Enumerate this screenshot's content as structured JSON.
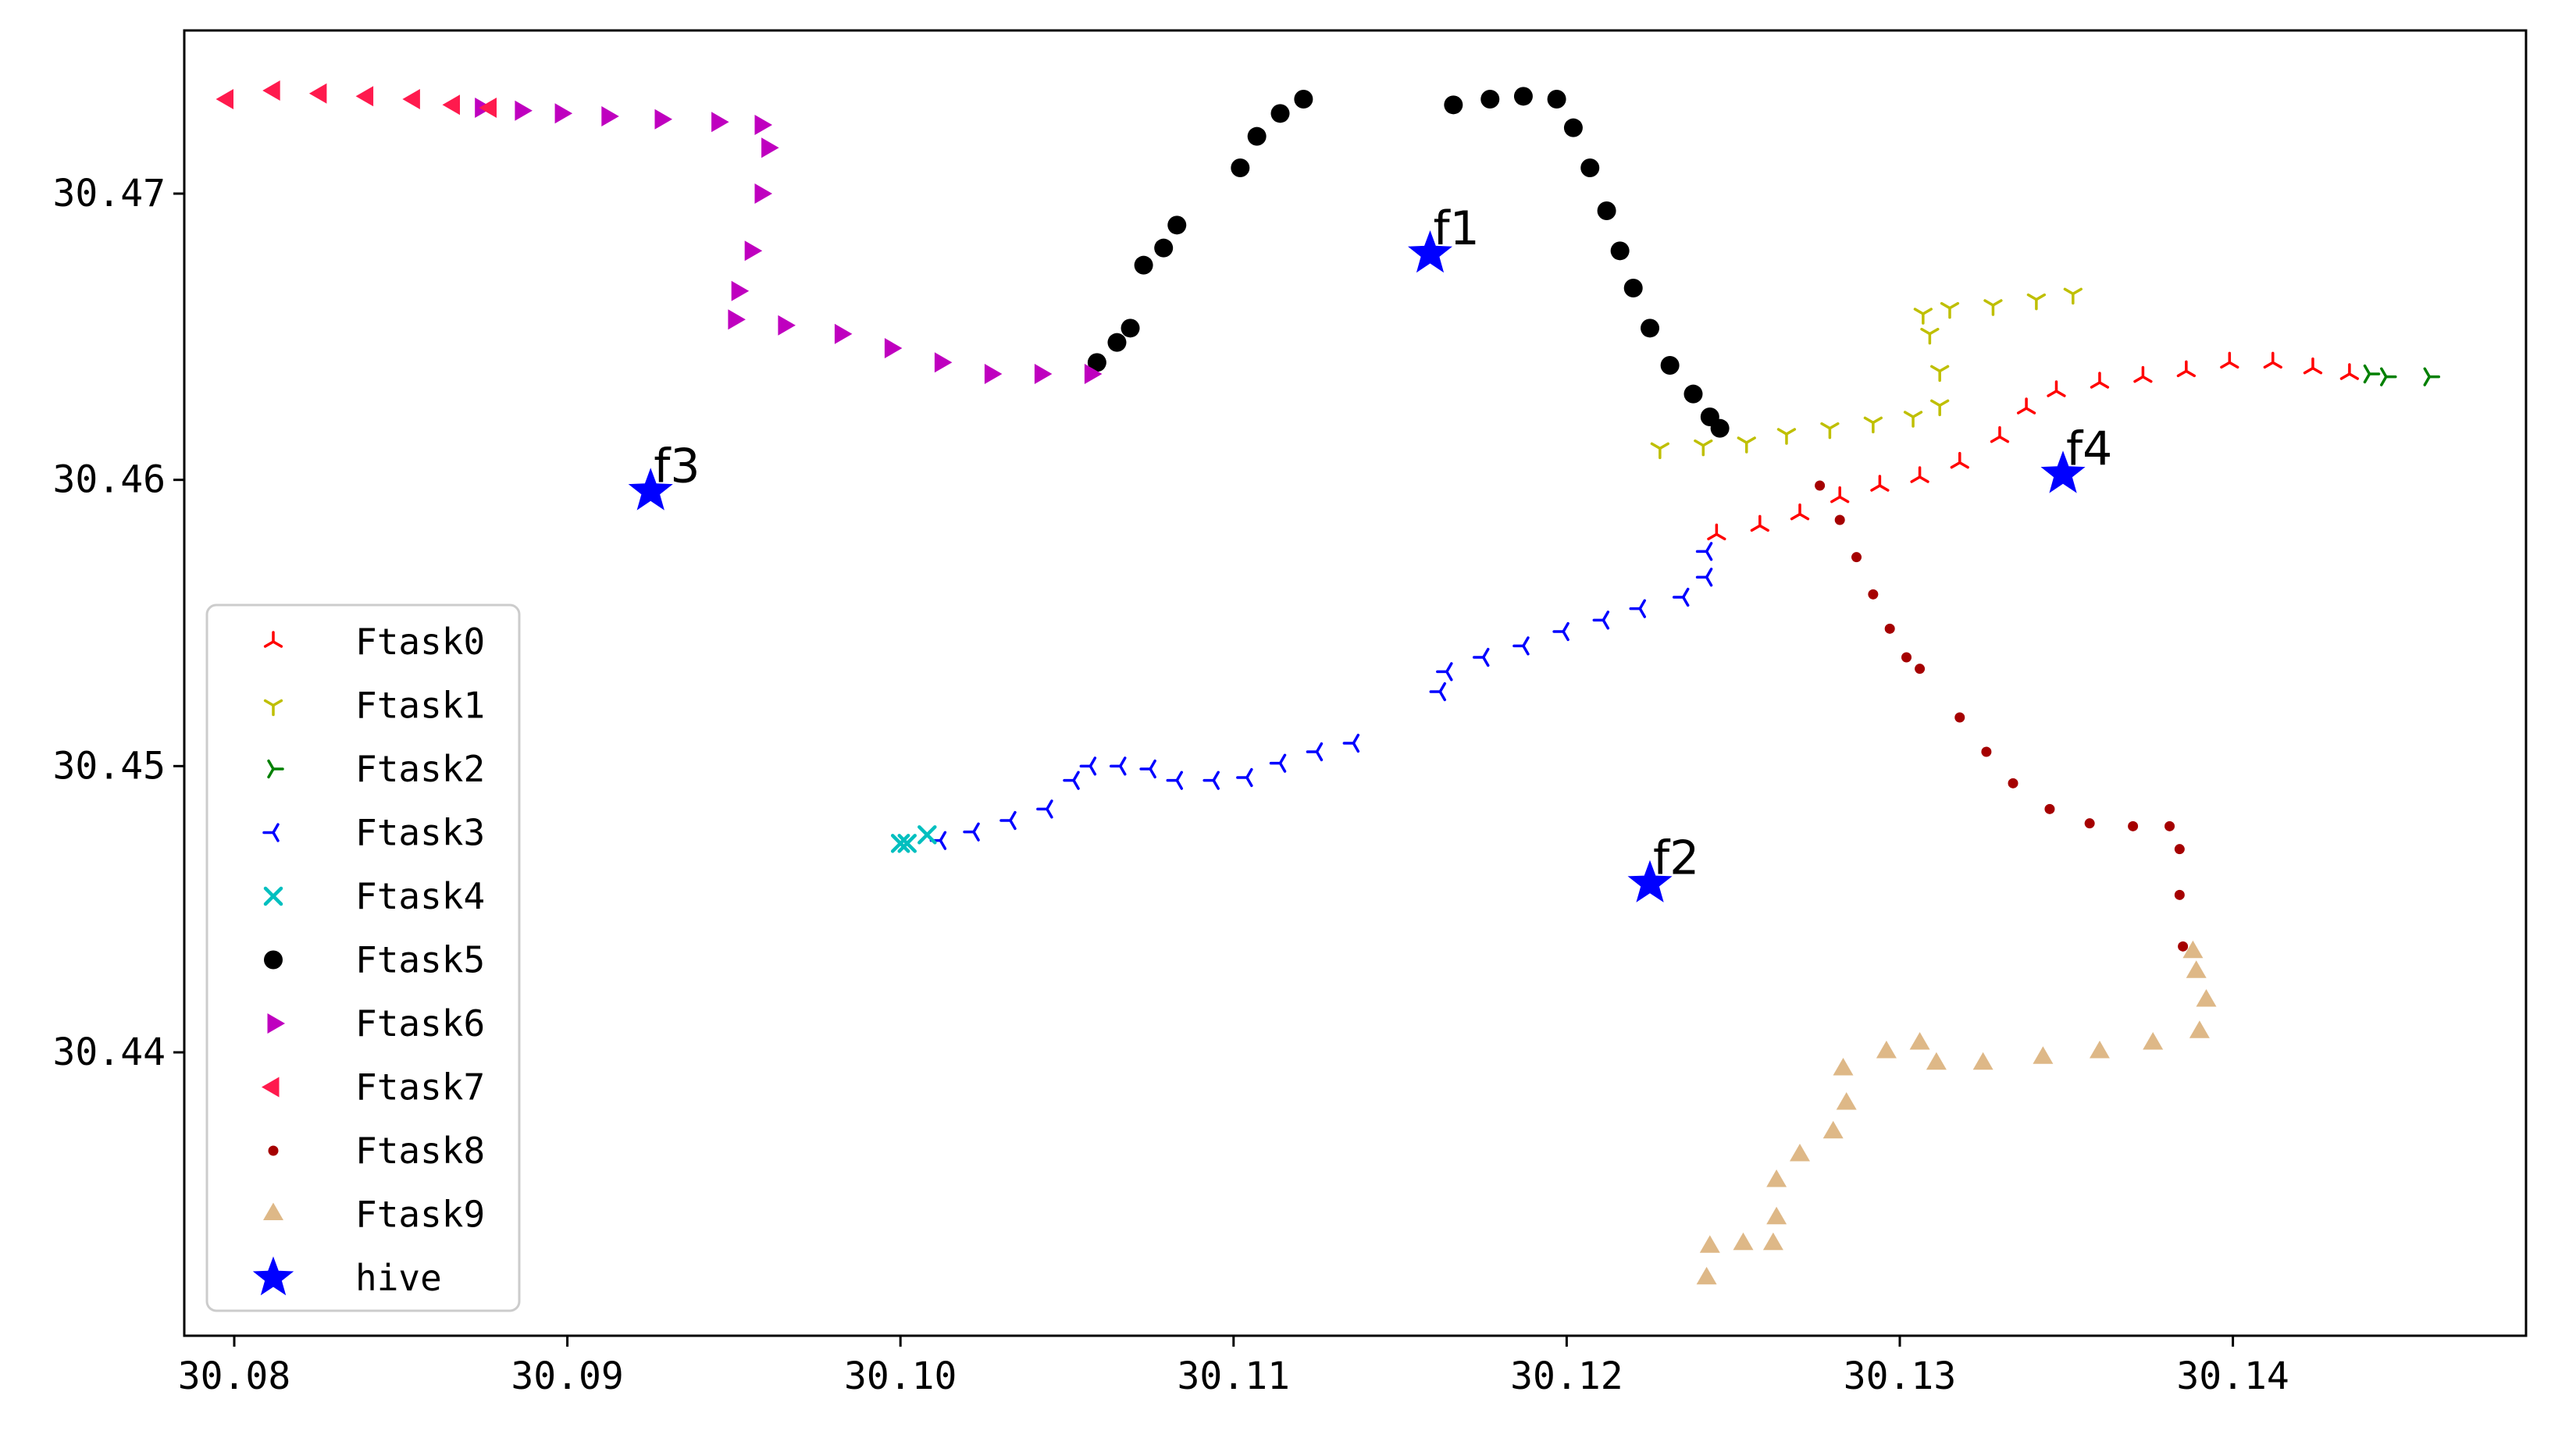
{
  "chart_data": {
    "type": "scatter",
    "title": "",
    "xlabel": "",
    "ylabel": "",
    "xlim": [
      30.0785,
      30.1488
    ],
    "ylim": [
      30.4301,
      30.4757
    ],
    "xticks": [
      30.08,
      30.09,
      30.1,
      30.11,
      30.12,
      30.13,
      30.14
    ],
    "xtick_labels": [
      "30.08",
      "30.09",
      "30.10",
      "30.11",
      "30.12",
      "30.13",
      "30.14"
    ],
    "yticks": [
      30.44,
      30.45,
      30.46,
      30.47
    ],
    "ytick_labels": [
      "30.44",
      "30.45",
      "30.46",
      "30.47"
    ],
    "grid": false,
    "legend_position": "lower-left",
    "series": [
      {
        "name": "Ftask0",
        "color": "#ff0000",
        "marker": "tri_down",
        "points": [
          [
            30.1245,
            30.4581
          ],
          [
            30.1258,
            30.4584
          ],
          [
            30.127,
            30.4588
          ],
          [
            30.1282,
            30.4594
          ],
          [
            30.1294,
            30.4598
          ],
          [
            30.1306,
            30.4601
          ],
          [
            30.1318,
            30.4606
          ],
          [
            30.133,
            30.4615
          ],
          [
            30.1338,
            30.4625
          ],
          [
            30.1347,
            30.4631
          ],
          [
            30.136,
            30.4634
          ],
          [
            30.1373,
            30.4636
          ],
          [
            30.1386,
            30.4638
          ],
          [
            30.1399,
            30.4641
          ],
          [
            30.1412,
            30.4641
          ],
          [
            30.1424,
            30.4639
          ],
          [
            30.1435,
            30.4637
          ]
        ]
      },
      {
        "name": "Ftask1",
        "color": "#bfbf00",
        "marker": "tri_up",
        "points": [
          [
            30.1228,
            30.4611
          ],
          [
            30.1241,
            30.4612
          ],
          [
            30.1254,
            30.4613
          ],
          [
            30.1266,
            30.4616
          ],
          [
            30.1279,
            30.4618
          ],
          [
            30.1292,
            30.462
          ],
          [
            30.1304,
            30.4622
          ],
          [
            30.1312,
            30.4626
          ],
          [
            30.1312,
            30.4638
          ],
          [
            30.1309,
            30.4651
          ],
          [
            30.1307,
            30.4658
          ],
          [
            30.1315,
            30.466
          ],
          [
            30.1328,
            30.4661
          ],
          [
            30.1341,
            30.4663
          ],
          [
            30.1352,
            30.4665
          ]
        ]
      },
      {
        "name": "Ftask2",
        "color": "#008000",
        "marker": "tri_left",
        "points": [
          [
            30.1441,
            30.4637
          ],
          [
            30.1446,
            30.4636
          ],
          [
            30.1459,
            30.4636
          ]
        ]
      },
      {
        "name": "Ftask3",
        "color": "#0000ff",
        "marker": "tri_right",
        "points": [
          [
            30.1012,
            30.4474
          ],
          [
            30.1022,
            30.4477
          ],
          [
            30.1033,
            30.4481
          ],
          [
            30.1044,
            30.4485
          ],
          [
            30.1052,
            30.4495
          ],
          [
            30.1057,
            30.45
          ],
          [
            30.1066,
            30.45
          ],
          [
            30.1075,
            30.4499
          ],
          [
            30.1083,
            30.4495
          ],
          [
            30.1094,
            30.4495
          ],
          [
            30.1104,
            30.4496
          ],
          [
            30.1114,
            30.4501
          ],
          [
            30.1125,
            30.4505
          ],
          [
            30.1136,
            30.4508
          ],
          [
            30.1162,
            30.4526
          ],
          [
            30.1164,
            30.4533
          ],
          [
            30.1175,
            30.4538
          ],
          [
            30.1187,
            30.4542
          ],
          [
            30.1199,
            30.4547
          ],
          [
            30.1211,
            30.4551
          ],
          [
            30.1222,
            30.4555
          ],
          [
            30.1235,
            30.4559
          ],
          [
            30.1242,
            30.4566
          ],
          [
            30.1242,
            30.4575
          ]
        ]
      },
      {
        "name": "Ftask4",
        "color": "#00bfbf",
        "marker": "x",
        "points": [
          [
            30.1,
            30.4473
          ],
          [
            30.1002,
            30.4473
          ],
          [
            30.1008,
            30.4476
          ]
        ]
      },
      {
        "name": "Ftask5",
        "color": "#000000",
        "marker": "circle",
        "points": [
          [
            30.1059,
            30.4641
          ],
          [
            30.1065,
            30.4648
          ],
          [
            30.1069,
            30.4653
          ],
          [
            30.1073,
            30.4675
          ],
          [
            30.1079,
            30.4681
          ],
          [
            30.1083,
            30.4689
          ],
          [
            30.1102,
            30.4709
          ],
          [
            30.1107,
            30.472
          ],
          [
            30.1114,
            30.4728
          ],
          [
            30.1121,
            30.4733
          ],
          [
            30.1166,
            30.4731
          ],
          [
            30.1177,
            30.4733
          ],
          [
            30.1187,
            30.4734
          ],
          [
            30.1197,
            30.4733
          ],
          [
            30.1202,
            30.4723
          ],
          [
            30.1207,
            30.4709
          ],
          [
            30.1212,
            30.4694
          ],
          [
            30.1216,
            30.468
          ],
          [
            30.122,
            30.4667
          ],
          [
            30.1225,
            30.4653
          ],
          [
            30.1231,
            30.464
          ],
          [
            30.1238,
            30.463
          ],
          [
            30.1243,
            30.4622
          ],
          [
            30.1246,
            30.4618
          ]
        ]
      },
      {
        "name": "Ftask6",
        "color": "#bf00bf",
        "marker": "triangle_right",
        "points": [
          [
            30.0874,
            30.473
          ],
          [
            30.0886,
            30.4729
          ],
          [
            30.0898,
            30.4728
          ],
          [
            30.0912,
            30.4727
          ],
          [
            30.0928,
            30.4726
          ],
          [
            30.0945,
            30.4725
          ],
          [
            30.0958,
            30.4724
          ],
          [
            30.096,
            30.4716
          ],
          [
            30.0958,
            30.47
          ],
          [
            30.0955,
            30.468
          ],
          [
            30.0951,
            30.4666
          ],
          [
            30.095,
            30.4656
          ],
          [
            30.0965,
            30.4654
          ],
          [
            30.0982,
            30.4651
          ],
          [
            30.0997,
            30.4646
          ],
          [
            30.1012,
            30.4641
          ],
          [
            30.1027,
            30.4637
          ],
          [
            30.1042,
            30.4637
          ],
          [
            30.1057,
            30.4637
          ]
        ]
      },
      {
        "name": "Ftask7",
        "color": "#ff1a4d",
        "marker": "triangle_left",
        "points": [
          [
            30.0798,
            30.4733
          ],
          [
            30.0812,
            30.4736
          ],
          [
            30.0826,
            30.4735
          ],
          [
            30.084,
            30.4734
          ],
          [
            30.0854,
            30.4733
          ],
          [
            30.0866,
            30.4731
          ],
          [
            30.0877,
            30.473
          ]
        ]
      },
      {
        "name": "Ftask8",
        "color": "#a50000",
        "marker": "point",
        "points": [
          [
            30.1276,
            30.4598
          ],
          [
            30.1282,
            30.4586
          ],
          [
            30.1287,
            30.4573
          ],
          [
            30.1292,
            30.456
          ],
          [
            30.1297,
            30.4548
          ],
          [
            30.1302,
            30.4538
          ],
          [
            30.1306,
            30.4534
          ],
          [
            30.1318,
            30.4517
          ],
          [
            30.1326,
            30.4505
          ],
          [
            30.1334,
            30.4494
          ],
          [
            30.1345,
            30.4485
          ],
          [
            30.1357,
            30.448
          ],
          [
            30.137,
            30.4479
          ],
          [
            30.1381,
            30.4479
          ],
          [
            30.1384,
            30.4471
          ],
          [
            30.1384,
            30.4455
          ],
          [
            30.1385,
            30.4437
          ]
        ]
      },
      {
        "name": "Ftask9",
        "color": "#deb887",
        "marker": "triangle_up",
        "points": [
          [
            30.1242,
            30.4321
          ],
          [
            30.1243,
            30.4332
          ],
          [
            30.1253,
            30.4333
          ],
          [
            30.1262,
            30.4333
          ],
          [
            30.1263,
            30.4342
          ],
          [
            30.1263,
            30.4355
          ],
          [
            30.127,
            30.4364
          ],
          [
            30.128,
            30.4372
          ],
          [
            30.1284,
            30.4382
          ],
          [
            30.1283,
            30.4394
          ],
          [
            30.1296,
            30.44
          ],
          [
            30.1306,
            30.4403
          ],
          [
            30.1311,
            30.4396
          ],
          [
            30.1325,
            30.4396
          ],
          [
            30.1343,
            30.4398
          ],
          [
            30.136,
            30.44
          ],
          [
            30.1376,
            30.4403
          ],
          [
            30.139,
            30.4407
          ],
          [
            30.1392,
            30.4418
          ],
          [
            30.1389,
            30.4428
          ],
          [
            30.1388,
            30.4435
          ]
        ]
      },
      {
        "name": "hive",
        "color": "#0000ff",
        "marker": "star",
        "points": [
          [
            30.1159,
            30.4679
          ],
          [
            30.1225,
            30.4459
          ],
          [
            30.0925,
            30.4596
          ],
          [
            30.1349,
            30.4602
          ]
        ],
        "labels": [
          "f1",
          "f2",
          "f3",
          "f4"
        ]
      }
    ]
  }
}
